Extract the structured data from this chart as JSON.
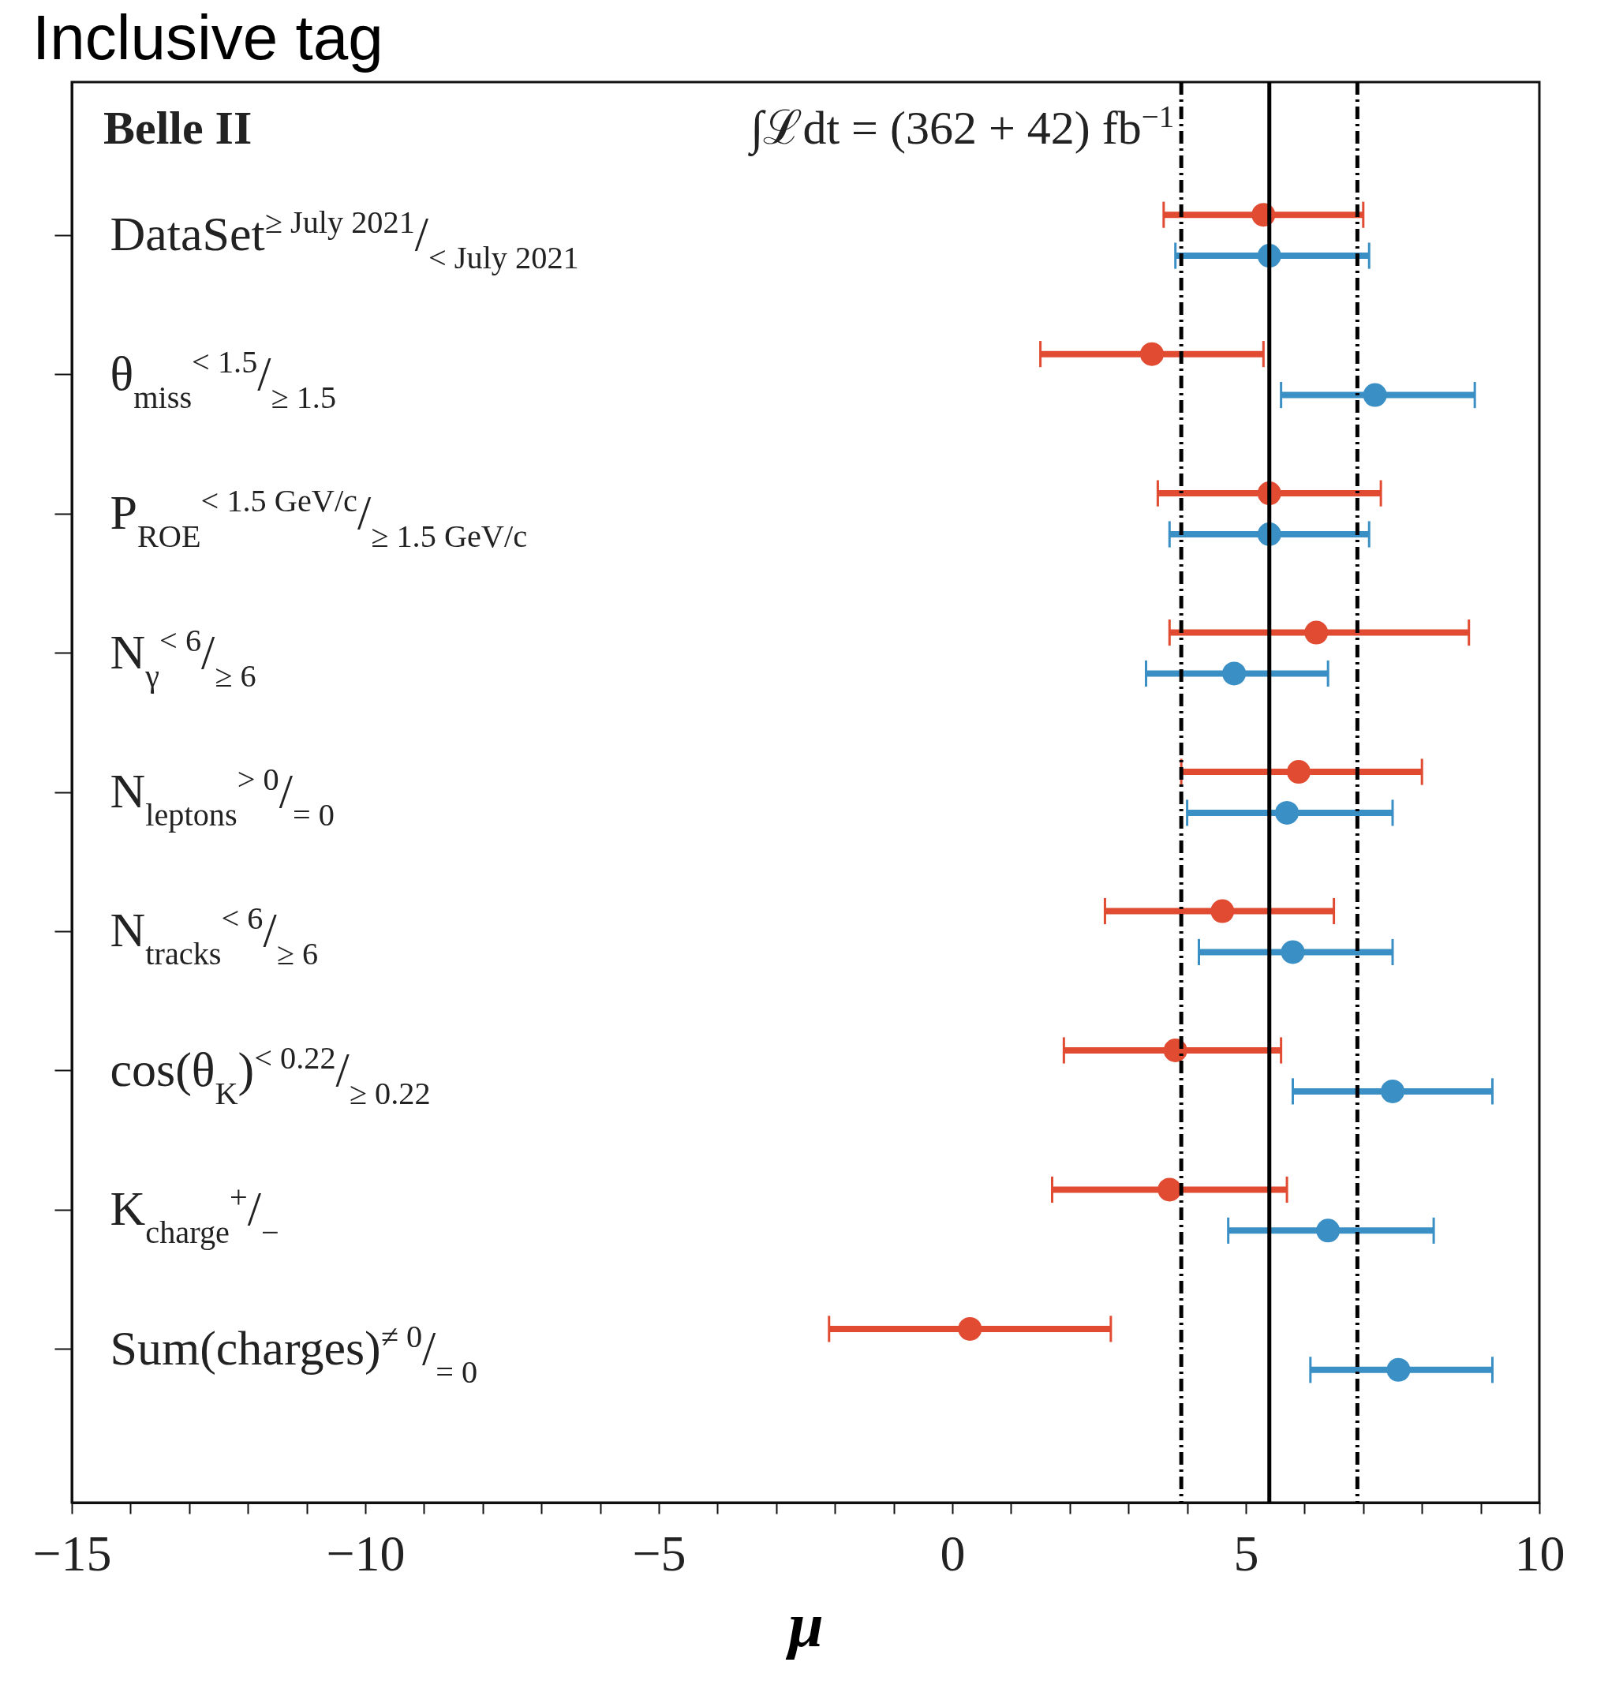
{
  "chart_data": {
    "type": "scatter",
    "title": "Inclusive tag",
    "xlabel": "μ",
    "categories": [
      "DataSet$^{≥ July 2021}$/$_{< July 2021}$",
      "θ$_{miss}$$^{< 1.5}$/$_{≥ 1.5}$",
      "P$_{ROE}$$^{< 1.5 GeV/c}$/$_{≥ 1.5 GeV/c}$",
      "N$_{γ}$$^{< 6}$/$_{≥ 6}$",
      "N$_{leptons}$$^{> 0}$/$_{= 0}$",
      "N$_{tracks}$$^{< 6}$/$_{≥ 6}$",
      "cos(θ$_{K}$)$^{< 0.22}$/$_{≥ 0.22}$",
      "K$_{charge}$$^{+}$/$_{−}$",
      "Sum(charges)$^{≠ 0}$/$_{= 0}$"
    ],
    "orientation": "horizontal",
    "series": [
      {
        "color": "#e04b32",
        "values": [
          5.3,
          3.4,
          5.4,
          6.2,
          5.9,
          4.6,
          3.8,
          3.7,
          0.3
        ],
        "errors": [
          [
            3.6,
            7.0
          ],
          [
            1.5,
            5.3
          ],
          [
            3.5,
            7.3
          ],
          [
            3.7,
            8.8
          ],
          [
            3.9,
            8.0
          ],
          [
            2.6,
            6.5
          ],
          [
            1.9,
            5.6
          ],
          [
            1.7,
            5.7
          ],
          [
            -2.1,
            2.7
          ]
        ]
      },
      {
        "color": "#3a8fc4",
        "values": [
          5.4,
          7.2,
          5.4,
          4.8,
          5.7,
          5.8,
          7.5,
          6.4,
          7.6
        ],
        "errors": [
          [
            3.8,
            7.1
          ],
          [
            5.6,
            8.9
          ],
          [
            3.7,
            7.1
          ],
          [
            3.3,
            6.4
          ],
          [
            4.0,
            7.5
          ],
          [
            4.2,
            7.5
          ],
          [
            5.8,
            9.2
          ],
          [
            4.7,
            8.2
          ],
          [
            6.1,
            9.2
          ]
        ]
      }
    ],
    "xlim": [
      -15,
      10
    ],
    "xticks": [
      {
        "value": -15,
        "label": "−15"
      },
      {
        "value": -14,
        "label": null
      },
      {
        "value": -13,
        "label": null
      },
      {
        "value": -12,
        "label": null
      },
      {
        "value": -11,
        "label": null
      },
      {
        "value": -10,
        "label": "−10"
      },
      {
        "value": -9,
        "label": null
      },
      {
        "value": -8,
        "label": null
      },
      {
        "value": -7,
        "label": null
      },
      {
        "value": -6,
        "label": null
      },
      {
        "value": -5,
        "label": "−5"
      },
      {
        "value": -4,
        "label": null
      },
      {
        "value": -3,
        "label": null
      },
      {
        "value": -2,
        "label": null
      },
      {
        "value": -1,
        "label": null
      },
      0,
      {
        "value": 1,
        "label": null
      },
      {
        "value": 2,
        "label": null
      },
      {
        "value": 3,
        "label": null
      },
      {
        "value": 4,
        "label": null
      },
      5,
      {
        "value": 6,
        "label": null
      },
      {
        "value": 7,
        "label": null
      },
      {
        "value": 8,
        "label": null
      },
      {
        "value": 9,
        "label": null
      },
      10
    ],
    "ref_lines": [
      {
        "axis": "x",
        "value": 3.9,
        "line_style": "dashed"
      },
      {
        "axis": "x",
        "value": 5.4,
        "line_style": "solid"
      },
      {
        "axis": "x",
        "value": 6.9,
        "line_style": "dashed"
      }
    ],
    "annotations": [
      "Belle II",
      "∫ℒdt = (362 + 42) fb$^{−1}$"
    ],
    "marker": "circle",
    "grid": false,
    "legend": false
  }
}
